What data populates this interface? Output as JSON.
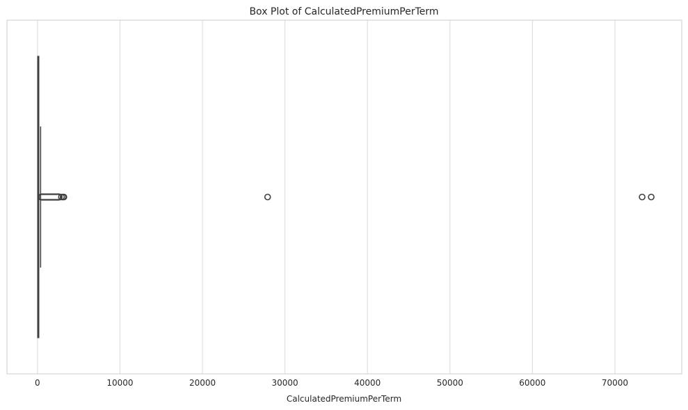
{
  "chart_data": {
    "type": "box",
    "title": "Box Plot of CalculatedPremiumPerTerm",
    "xlabel": "CalculatedPremiumPerTerm",
    "ylabel": "",
    "orientation": "horizontal",
    "xlim": [
      -3700,
      78100
    ],
    "xticks": [
      0,
      10000,
      20000,
      30000,
      40000,
      50000,
      60000,
      70000
    ],
    "grid": true,
    "box": {
      "q1": 20,
      "median": 70,
      "q3": 170,
      "whisker_low": 0,
      "whisker_high": 380,
      "outliers_dense_range": [
        390,
        2700
      ],
      "outliers": [
        2900,
        3100,
        3200,
        27900,
        73300,
        74400
      ]
    },
    "colors": {
      "box_line": "#3f3f3f",
      "grid": "#d9d9d9",
      "frame": "#cccccc",
      "text": "#262626"
    }
  }
}
